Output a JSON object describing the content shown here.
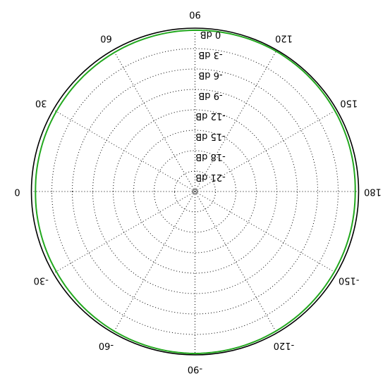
{
  "chart_data": {
    "type": "polar",
    "flipped_180": true,
    "r_range_db": [
      -24,
      0
    ],
    "ring_step_db": 3,
    "ring_labels": [
      "0 dB",
      "-3 dB",
      "-6 dB",
      "-9 dB",
      "-12 dB",
      "-15 dB",
      "-18 dB",
      "-21 dB"
    ],
    "angle_labels": [
      {
        "angle": 0,
        "text": "0"
      },
      {
        "angle": 30,
        "text": "30"
      },
      {
        "angle": 60,
        "text": "60"
      },
      {
        "angle": 90,
        "text": "90"
      },
      {
        "angle": 120,
        "text": "120"
      },
      {
        "angle": 150,
        "text": "150"
      },
      {
        "angle": 180,
        "text": "180"
      },
      {
        "angle": -150,
        "text": "-150"
      },
      {
        "angle": -120,
        "text": "-120"
      },
      {
        "angle": -90,
        "text": "-90"
      },
      {
        "angle": -60,
        "text": "-60"
      },
      {
        "angle": -30,
        "text": "-30"
      }
    ],
    "series": [
      {
        "color": "#22a81e",
        "angles": [
          0,
          30,
          60,
          90,
          120,
          150,
          180,
          -150,
          -120,
          -90,
          -60,
          -30
        ],
        "values_db": [
          -0.6,
          -0.5,
          -0.4,
          -0.3,
          -0.2,
          -0.3,
          -0.5,
          -0.4,
          -0.3,
          -0.2,
          -0.3,
          -0.5
        ]
      }
    ],
    "grid": true
  }
}
